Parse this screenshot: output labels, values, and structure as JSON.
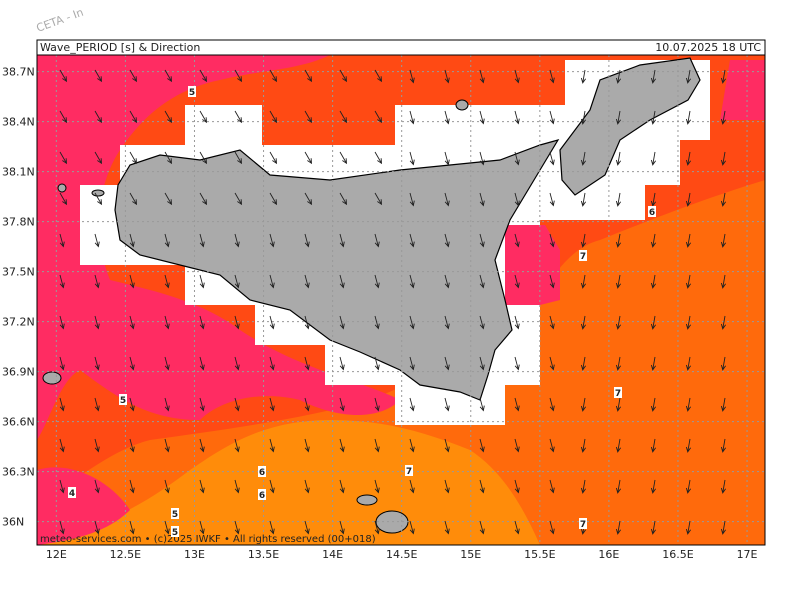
{
  "watermark": "CETA - In",
  "header": {
    "title": "Wave_PERIOD [s] & Direction",
    "date": "10.07.2025 18 UTC"
  },
  "footer": "meteo-services.com • (c)2025 IWKF • All rights reserved (00+018)",
  "map": {
    "lonlim": [
      11.86,
      17.13
    ],
    "latlim": [
      35.86,
      38.8
    ],
    "lon_ticks": [
      {
        "value": 12,
        "label": "12E"
      },
      {
        "value": 12.5,
        "label": "12.5E"
      },
      {
        "value": 13,
        "label": "13E"
      },
      {
        "value": 13.5,
        "label": "13.5E"
      },
      {
        "value": 14,
        "label": "14E"
      },
      {
        "value": 14.5,
        "label": "14.5E"
      },
      {
        "value": 15,
        "label": "15E"
      },
      {
        "value": 15.5,
        "label": "15.5E"
      },
      {
        "value": 16,
        "label": "16E"
      },
      {
        "value": 16.5,
        "label": "16.5E"
      },
      {
        "value": 17,
        "label": "17E"
      }
    ],
    "lat_ticks": [
      {
        "value": 38.7,
        "label": "38.7N"
      },
      {
        "value": 38.4,
        "label": "38.4N"
      },
      {
        "value": 38.1,
        "label": "38.1N"
      },
      {
        "value": 37.8,
        "label": "37.8N"
      },
      {
        "value": 37.5,
        "label": "37.5N"
      },
      {
        "value": 37.2,
        "label": "37.2N"
      },
      {
        "value": 36.9,
        "label": "36.9N"
      },
      {
        "value": 36.6,
        "label": "36.6N"
      },
      {
        "value": 36.3,
        "label": "36.3N"
      },
      {
        "value": 36,
        "label": "36N"
      }
    ],
    "contour_labels": [
      5,
      5,
      4,
      5,
      6,
      6,
      5,
      6,
      7,
      7,
      7,
      7
    ]
  }
}
